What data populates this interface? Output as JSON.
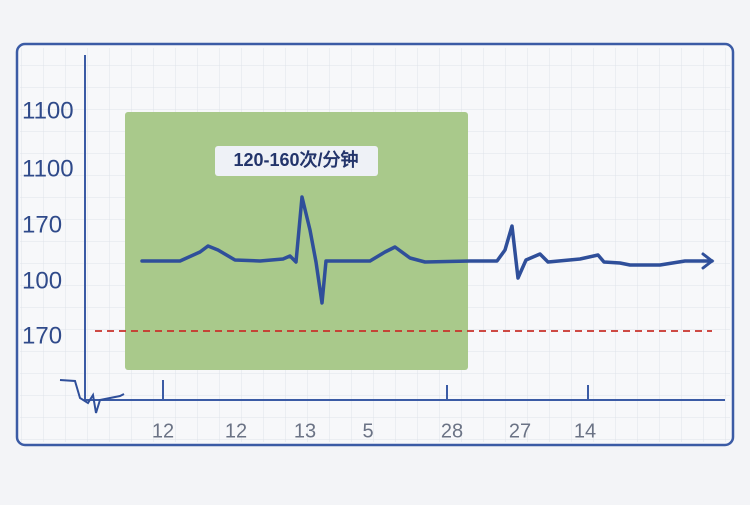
{
  "y_labels": [
    "1100",
    "1100",
    "170",
    "100",
    "170"
  ],
  "x_labels": [
    "12",
    "12",
    "13",
    "5",
    "28",
    "27",
    "14"
  ],
  "annotation": "120-160次/分钟"
}
